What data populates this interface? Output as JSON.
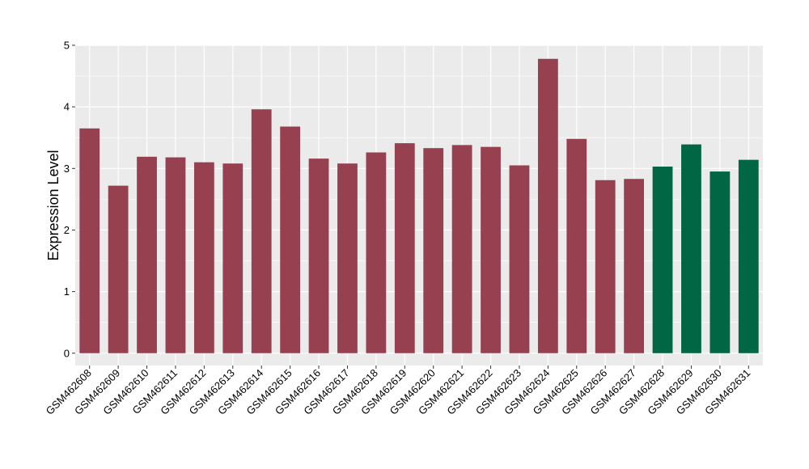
{
  "chart_data": {
    "type": "bar",
    "title": "",
    "xlabel": "",
    "ylabel": "Expression Level",
    "ylim": [
      -0.2,
      5.0
    ],
    "yticks": [
      0,
      1,
      2,
      3,
      4,
      5
    ],
    "grid": true,
    "legend": "none",
    "background": "#EBEBEB",
    "gridline_color": "#FFFFFF",
    "group_colors": {
      "group1": "#974150",
      "group2": "#006643"
    },
    "categories": [
      "GSM462608",
      "GSM462609",
      "GSM462610",
      "GSM462611",
      "GSM462612",
      "GSM462613",
      "GSM462614",
      "GSM462615",
      "GSM462616",
      "GSM462617",
      "GSM462618",
      "GSM462619",
      "GSM462620",
      "GSM462621",
      "GSM462622",
      "GSM462623",
      "GSM462624",
      "GSM462625",
      "GSM462626",
      "GSM462627",
      "GSM462628",
      "GSM462629",
      "GSM462630",
      "GSM462631"
    ],
    "values": [
      3.65,
      2.72,
      3.19,
      3.18,
      3.1,
      3.08,
      3.96,
      3.68,
      3.16,
      3.08,
      3.26,
      3.41,
      3.33,
      3.38,
      3.35,
      3.05,
      4.78,
      3.48,
      2.81,
      2.83,
      3.03,
      3.39,
      2.95,
      3.14
    ],
    "groups": [
      "group1",
      "group1",
      "group1",
      "group1",
      "group1",
      "group1",
      "group1",
      "group1",
      "group1",
      "group1",
      "group1",
      "group1",
      "group1",
      "group1",
      "group1",
      "group1",
      "group1",
      "group1",
      "group1",
      "group1",
      "group2",
      "group2",
      "group2",
      "group2"
    ]
  }
}
